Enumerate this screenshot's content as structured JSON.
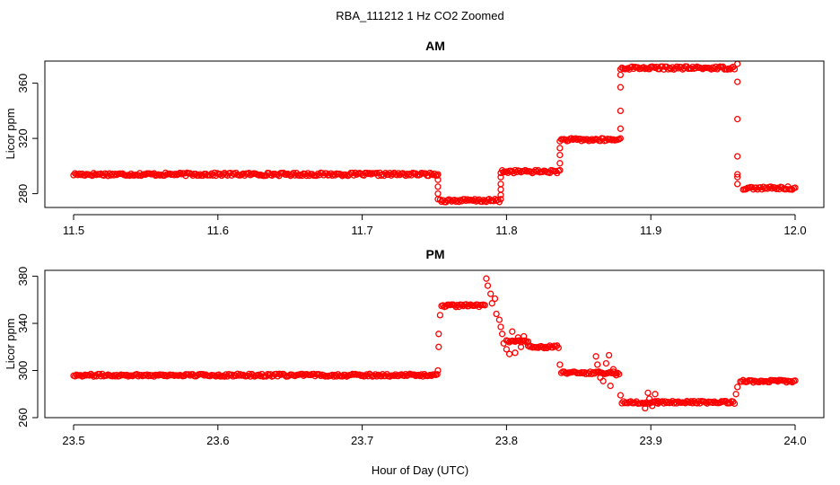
{
  "figure": {
    "title": "RBA_111212  1 Hz CO2 Zoomed",
    "xlabel": "Hour of Day (UTC)"
  },
  "chart_data": [
    {
      "type": "scatter",
      "title": "AM",
      "xlabel": "Hour of Day (UTC)",
      "ylabel": "Licor ppm",
      "xlim": [
        11.5,
        12.0
      ],
      "ylim": [
        270,
        376
      ],
      "xticks": [
        "11.5",
        "11.6",
        "11.7",
        "11.8",
        "11.9",
        "12.0"
      ],
      "xtick_values": [
        11.5,
        11.6,
        11.7,
        11.8,
        11.9,
        12.0
      ],
      "yticks": [
        "280",
        "320",
        "360"
      ],
      "ytick_values": [
        280,
        320,
        360
      ],
      "marker": "open-circle",
      "color": "#ff0000",
      "grid": false,
      "legend": "none",
      "series": [
        {
          "segments": [
            {
              "x_start": 11.5,
              "x_end": 11.752,
              "y": 294
            },
            {
              "x_start": 11.754,
              "x_end": 11.795,
              "y": 275
            },
            {
              "x_start": 11.797,
              "x_end": 11.836,
              "y": 296
            },
            {
              "x_start": 11.838,
              "x_end": 11.878,
              "y": 319
            },
            {
              "x_start": 11.88,
              "x_end": 11.958,
              "y": 371
            },
            {
              "x_start": 11.964,
              "x_end": 12.0,
              "y": 284
            }
          ],
          "transitions": [
            {
              "x": 11.7525,
              "y": [
                294,
                290,
                285,
                280,
                276
              ]
            },
            {
              "x": 11.796,
              "y": [
                276,
                279,
                283,
                287,
                292,
                295
              ]
            },
            {
              "x": 11.837,
              "y": [
                297,
                302,
                308,
                313,
                318
              ]
            },
            {
              "x": 11.879,
              "y": [
                320,
                327,
                340,
                357,
                366,
                370
              ]
            },
            {
              "x": 11.96,
              "y": [
                374,
                361,
                334,
                307,
                294,
                292,
                287
              ]
            }
          ]
        }
      ]
    },
    {
      "type": "scatter",
      "title": "PM",
      "xlabel": "Hour of Day (UTC)",
      "ylabel": "Licor ppm",
      "xlim": [
        23.5,
        24.0
      ],
      "ylim": [
        260,
        385
      ],
      "xticks": [
        "23.5",
        "23.6",
        "23.7",
        "23.8",
        "23.9",
        "24.0"
      ],
      "xtick_values": [
        23.5,
        23.6,
        23.7,
        23.8,
        23.9,
        24.0
      ],
      "yticks": [
        "260",
        "300",
        "340",
        "380"
      ],
      "ytick_values": [
        260,
        300,
        340,
        380
      ],
      "marker": "open-circle",
      "color": "#ff0000",
      "grid": false,
      "legend": "none",
      "series": [
        {
          "segments": [
            {
              "x_start": 23.5,
              "x_end": 23.752,
              "y": 296
            },
            {
              "x_start": 23.755,
              "x_end": 23.785,
              "y": 355
            },
            {
              "x_start": 23.8,
              "x_end": 23.815,
              "y": 325
            },
            {
              "x_start": 23.815,
              "x_end": 23.836,
              "y": 320
            },
            {
              "x_start": 23.838,
              "x_end": 23.878,
              "y": 298
            },
            {
              "x_start": 23.88,
              "x_end": 23.958,
              "y": 273
            },
            {
              "x_start": 23.962,
              "x_end": 24.0,
              "y": 291
            }
          ],
          "points": [
            {
              "x": 23.7525,
              "y": 300
            },
            {
              "x": 23.753,
              "y": 320
            },
            {
              "x": 23.753,
              "y": 331
            },
            {
              "x": 23.754,
              "y": 347
            },
            {
              "x": 23.786,
              "y": 378
            },
            {
              "x": 23.787,
              "y": 372
            },
            {
              "x": 23.789,
              "y": 365
            },
            {
              "x": 23.79,
              "y": 357
            },
            {
              "x": 23.792,
              "y": 361
            },
            {
              "x": 23.793,
              "y": 348
            },
            {
              "x": 23.795,
              "y": 343
            },
            {
              "x": 23.796,
              "y": 337
            },
            {
              "x": 23.797,
              "y": 331
            },
            {
              "x": 23.798,
              "y": 323
            },
            {
              "x": 23.8,
              "y": 318
            },
            {
              "x": 23.802,
              "y": 314
            },
            {
              "x": 23.804,
              "y": 333
            },
            {
              "x": 23.806,
              "y": 315
            },
            {
              "x": 23.808,
              "y": 328
            },
            {
              "x": 23.81,
              "y": 320
            },
            {
              "x": 23.812,
              "y": 329
            },
            {
              "x": 23.837,
              "y": 305
            },
            {
              "x": 23.862,
              "y": 312
            },
            {
              "x": 23.863,
              "y": 305
            },
            {
              "x": 23.864,
              "y": 299
            },
            {
              "x": 23.865,
              "y": 294
            },
            {
              "x": 23.867,
              "y": 291
            },
            {
              "x": 23.869,
              "y": 306
            },
            {
              "x": 23.871,
              "y": 313
            },
            {
              "x": 23.872,
              "y": 287
            },
            {
              "x": 23.874,
              "y": 301
            },
            {
              "x": 23.876,
              "y": 296
            },
            {
              "x": 23.879,
              "y": 279
            },
            {
              "x": 23.896,
              "y": 268
            },
            {
              "x": 23.898,
              "y": 281
            },
            {
              "x": 23.899,
              "y": 276
            },
            {
              "x": 23.901,
              "y": 270
            },
            {
              "x": 23.903,
              "y": 280
            },
            {
              "x": 23.905,
              "y": 272
            },
            {
              "x": 23.959,
              "y": 280
            },
            {
              "x": 23.96,
              "y": 286
            }
          ]
        }
      ]
    }
  ]
}
